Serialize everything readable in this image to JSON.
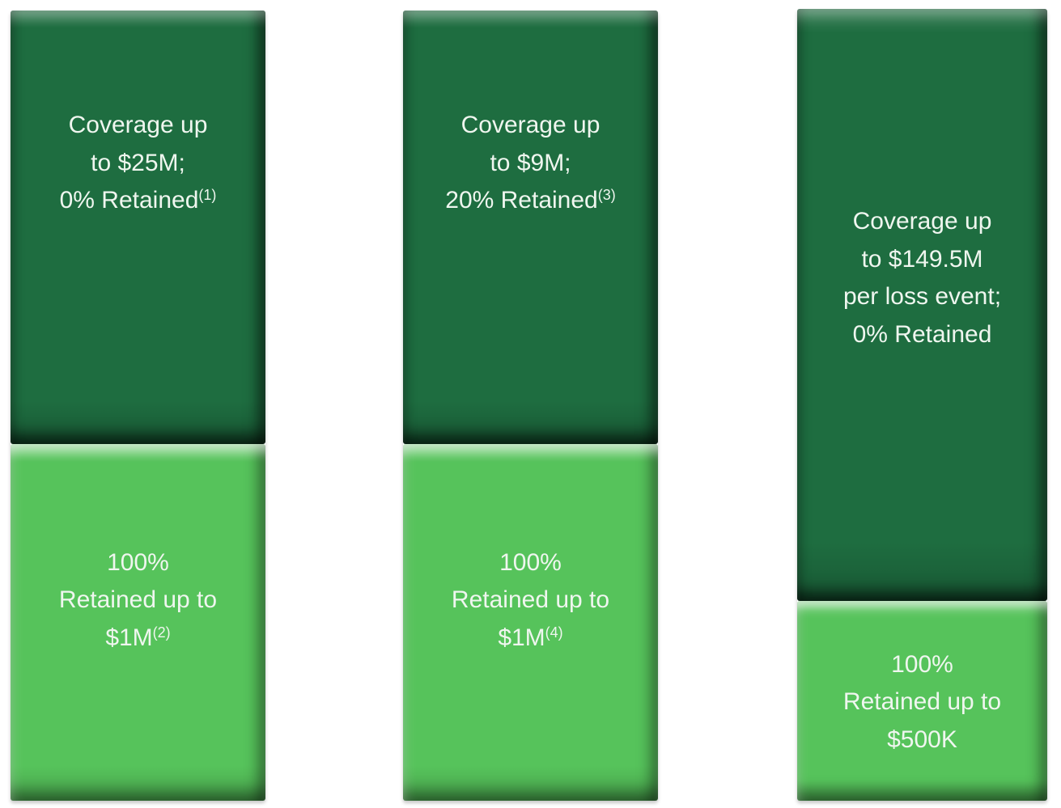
{
  "colors": {
    "background": "#FFFFFF",
    "dark_green": "#1E6D40",
    "light_green": "#56C35B",
    "label_text": "#EFF6EF"
  },
  "bars": [
    {
      "id": "tower-1",
      "top": {
        "lines": [
          "Coverage up",
          "to $25M;",
          "0% Retained"
        ],
        "sup": "(1)"
      },
      "bottom": {
        "lines": [
          "100%",
          "Retained up to",
          "$1M"
        ],
        "sup": "(2)"
      }
    },
    {
      "id": "tower-2",
      "top": {
        "lines": [
          "Coverage up",
          "to $9M;",
          "20% Retained"
        ],
        "sup": "(3)"
      },
      "bottom": {
        "lines": [
          "100%",
          "Retained up to",
          "$1M"
        ],
        "sup": "(4)"
      }
    },
    {
      "id": "tower-3",
      "top": {
        "lines": [
          "Coverage up",
          "to $149.5M",
          "per loss event;",
          "0% Retained"
        ],
        "sup": ""
      },
      "bottom": {
        "lines": [
          "100%",
          "Retained up to",
          "$500K"
        ],
        "sup": ""
      }
    }
  ],
  "chart_data": {
    "type": "bar",
    "subtype": "stacked_tower_diagram",
    "orientation": "vertical",
    "axes": "none",
    "legend": "none",
    "grid": false,
    "bars": [
      {
        "id": "tower-1",
        "segments": [
          {
            "position": "top",
            "label": "Coverage up to $25M; 0% Retained(1)",
            "coverage_limit": "$25M",
            "retained_pct": "0%",
            "footnote_marker": "(1)",
            "color_hex": "#1E6D40",
            "height_fraction": 0.55
          },
          {
            "position": "bottom",
            "label": "100% Retained up to $1M(2)",
            "retained_pct": "100%",
            "retention_limit": "$1M",
            "footnote_marker": "(2)",
            "color_hex": "#56C35B",
            "height_fraction": 0.45
          }
        ]
      },
      {
        "id": "tower-2",
        "segments": [
          {
            "position": "top",
            "label": "Coverage up to $9M; 20% Retained(3)",
            "coverage_limit": "$9M",
            "retained_pct": "20%",
            "footnote_marker": "(3)",
            "color_hex": "#1E6D40",
            "height_fraction": 0.55
          },
          {
            "position": "bottom",
            "label": "100% Retained up to $1M(4)",
            "retained_pct": "100%",
            "retention_limit": "$1M",
            "footnote_marker": "(4)",
            "color_hex": "#56C35B",
            "height_fraction": 0.45
          }
        ]
      },
      {
        "id": "tower-3",
        "segments": [
          {
            "position": "top",
            "label": "Coverage up to $149.5M per loss event; 0% Retained",
            "coverage_limit": "$149.5M per loss event",
            "retained_pct": "0%",
            "footnote_marker": "",
            "color_hex": "#1E6D40",
            "height_fraction": 0.75
          },
          {
            "position": "bottom",
            "label": "100% Retained up to $500K",
            "retained_pct": "100%",
            "retention_limit": "$500K",
            "footnote_marker": "",
            "color_hex": "#56C35B",
            "height_fraction": 0.25
          }
        ]
      }
    ]
  }
}
